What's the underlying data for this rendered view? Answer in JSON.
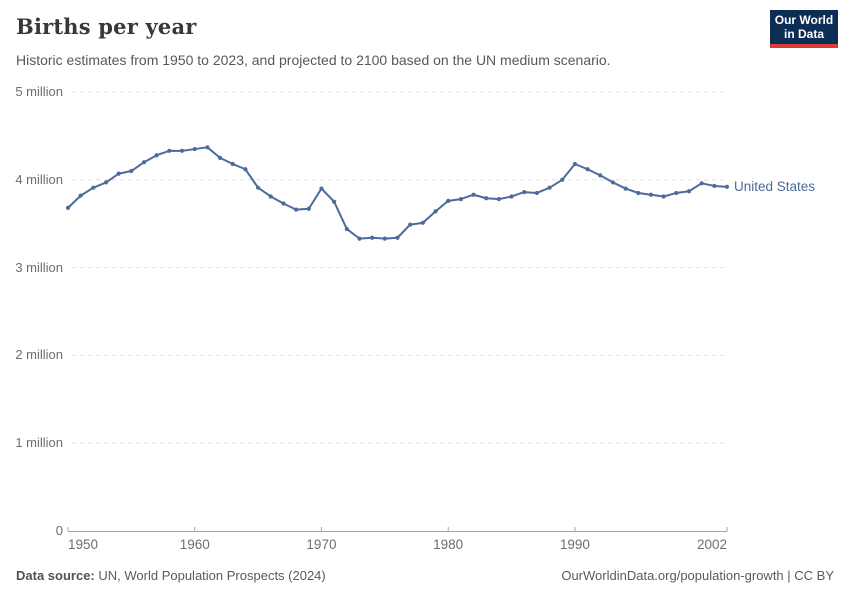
{
  "header": {
    "title": "Births per year",
    "subtitle": "Historic estimates from 1950 to 2023, and projected to 2100 based on the UN medium scenario.",
    "logo": {
      "line1": "Our World",
      "line2": "in Data",
      "bg_color": "#0d2e54",
      "stripe_color": "#d93d37"
    }
  },
  "chart_data": {
    "type": "line",
    "title": "Births per year",
    "xlabel": "",
    "ylabel": "Births",
    "unit": "million",
    "xlim": [
      1950,
      2002
    ],
    "ylim": [
      0,
      5
    ],
    "grid": "dashed-horizontal",
    "legend_position": "right-of-line-end",
    "y_ticks": [
      {
        "value": 0,
        "label": "0"
      },
      {
        "value": 1,
        "label": "1 million"
      },
      {
        "value": 2,
        "label": "2 million"
      },
      {
        "value": 3,
        "label": "3 million"
      },
      {
        "value": 4,
        "label": "4 million"
      },
      {
        "value": 5,
        "label": "5 million"
      }
    ],
    "x_ticks": [
      {
        "year": 1950,
        "label": "1950"
      },
      {
        "year": 1960,
        "label": "1960"
      },
      {
        "year": 1970,
        "label": "1970"
      },
      {
        "year": 1980,
        "label": "1980"
      },
      {
        "year": 1990,
        "label": "1990"
      },
      {
        "year": 2002,
        "label": "2002"
      }
    ],
    "series": [
      {
        "name": "United States",
        "color": "#4c6a9c",
        "x": [
          1950,
          1951,
          1952,
          1953,
          1954,
          1955,
          1956,
          1957,
          1958,
          1959,
          1960,
          1961,
          1962,
          1963,
          1964,
          1965,
          1966,
          1967,
          1968,
          1969,
          1970,
          1971,
          1972,
          1973,
          1974,
          1975,
          1976,
          1977,
          1978,
          1979,
          1980,
          1981,
          1982,
          1983,
          1984,
          1985,
          1986,
          1987,
          1988,
          1989,
          1990,
          1991,
          1992,
          1993,
          1994,
          1995,
          1996,
          1997,
          1998,
          1999,
          2000,
          2001,
          2002
        ],
        "values": [
          3.68,
          3.82,
          3.91,
          3.97,
          4.07,
          4.1,
          4.2,
          4.28,
          4.33,
          4.33,
          4.35,
          4.37,
          4.25,
          4.18,
          4.12,
          3.91,
          3.81,
          3.73,
          3.66,
          3.67,
          3.9,
          3.75,
          3.44,
          3.33,
          3.34,
          3.33,
          3.34,
          3.49,
          3.51,
          3.64,
          3.76,
          3.78,
          3.83,
          3.79,
          3.78,
          3.81,
          3.86,
          3.85,
          3.91,
          4.0,
          4.18,
          4.12,
          4.05,
          3.97,
          3.9,
          3.85,
          3.83,
          3.81,
          3.85,
          3.87,
          3.96,
          3.93,
          3.92
        ]
      }
    ]
  },
  "legend": {
    "label": "United States",
    "color": "#4c6a9c"
  },
  "footer": {
    "source_label": "Data source:",
    "source_value": "UN, World Population Prospects (2024)",
    "link_text": "OurWorldinData.org/population-growth | CC BY"
  },
  "colors": {
    "gridline": "#dedede",
    "axis": "#a5a5a5",
    "tick_label": "#6e6e6e"
  }
}
